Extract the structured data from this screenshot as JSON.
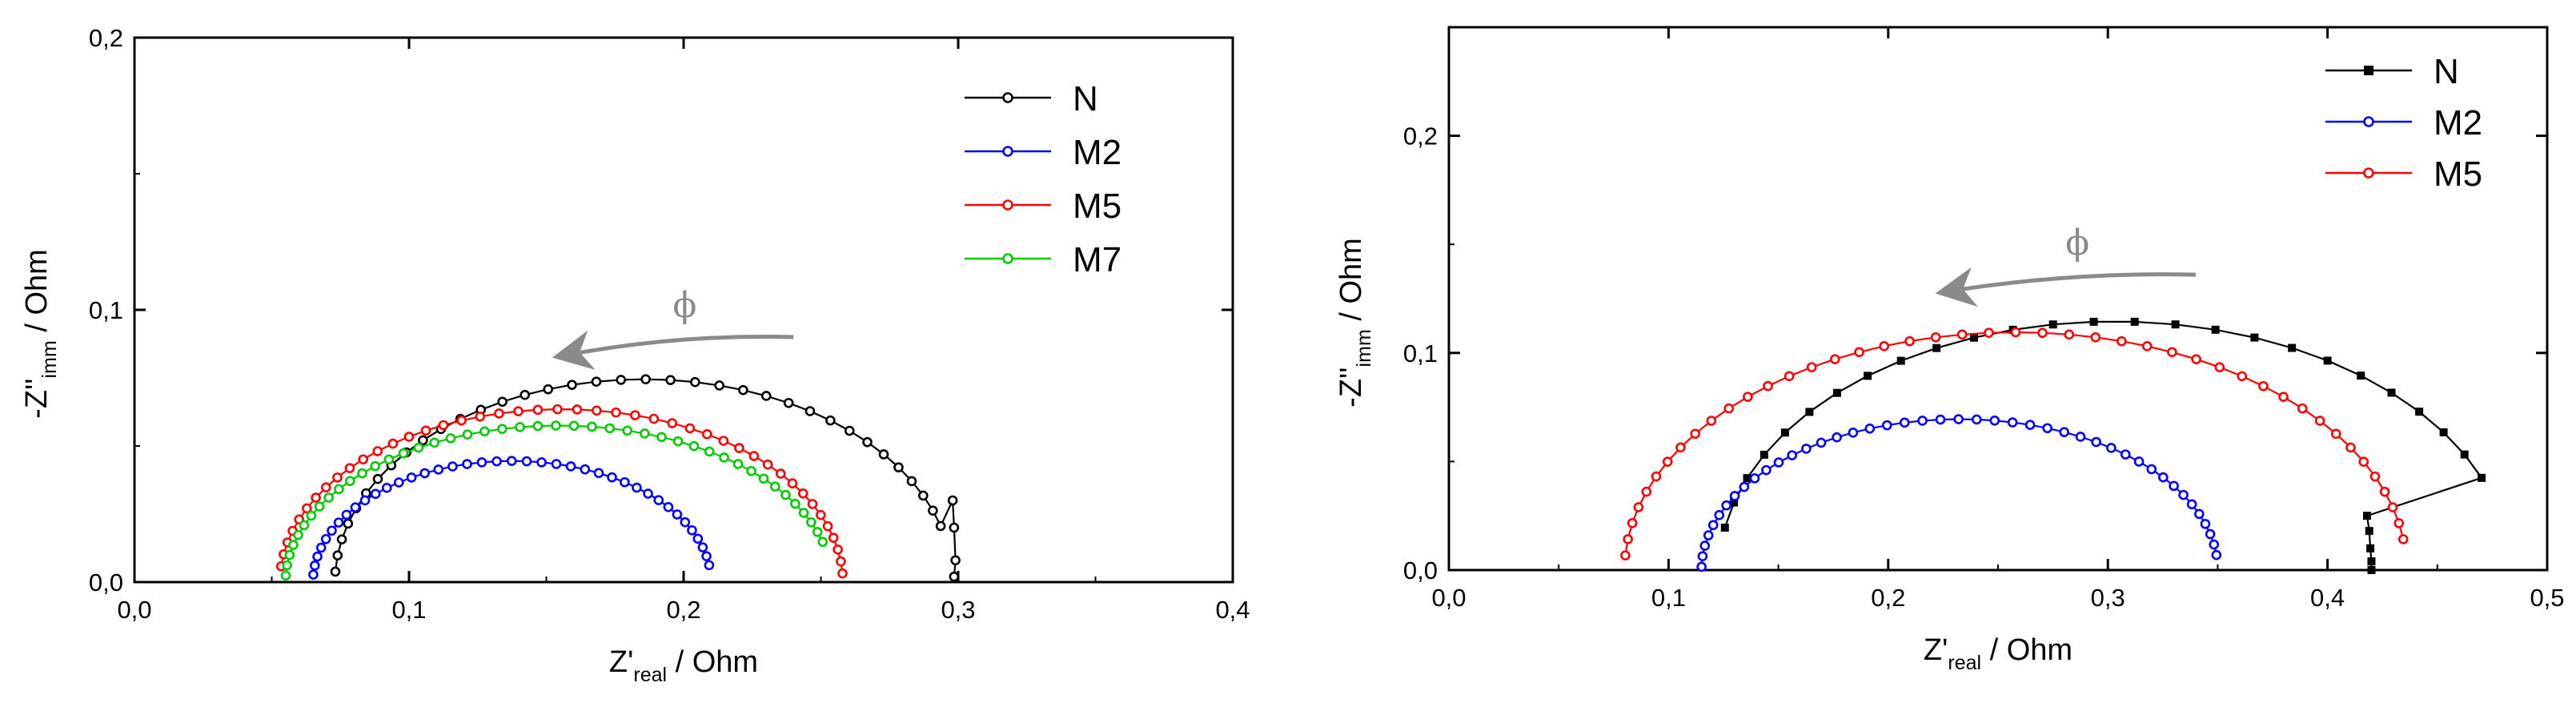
{
  "chart_data": [
    {
      "type": "line",
      "xlabel": {
        "main": "Z'",
        "sub": "real",
        "unit": " / Ohm"
      },
      "ylabel": {
        "main": "-Z''",
        "sub": "imm",
        "unit": " / Ohm"
      },
      "xlim": [
        0,
        0.4
      ],
      "ylim": [
        0,
        0.2
      ],
      "x_ticks": [
        0,
        0.1,
        0.2,
        0.3,
        0.4
      ],
      "x_tick_labels": [
        "0,0",
        "0,1",
        "0,2",
        "0,3",
        "0,4"
      ],
      "y_ticks": [
        0,
        0.1,
        0.2
      ],
      "y_tick_labels": [
        "0,0",
        "0,1",
        "0,2"
      ],
      "legend_position": "top-right",
      "arrow_label": "ϕ",
      "arrow": {
        "x_from": 0.24,
        "y_from": 0.09,
        "x_to": 0.155,
        "y_to": 0.083
      },
      "series": [
        {
          "name": "N",
          "color": "#000000",
          "marker": "circle",
          "center": [
            0.1855,
            0
          ],
          "rx": 0.1125,
          "ry": 0.0745,
          "theta_start": 0.28,
          "theta_end": 3.09,
          "n": 36,
          "tail": [
            [
              0.298,
              0.03
            ],
            [
              0.2985,
              0.02
            ],
            [
              0.299,
              0.008
            ],
            [
              0.2985,
              0.002
            ]
          ]
        },
        {
          "name": "M2",
          "color": "#0000ff",
          "marker": "circle",
          "center": [
            0.1375,
            0
          ],
          "rx": 0.0725,
          "ry": 0.0445,
          "theta_start": 0.14,
          "theta_end": 3.08,
          "n": 40,
          "tail": []
        },
        {
          "name": "M5",
          "color": "#ff0000",
          "marker": "circle",
          "center": [
            0.1555,
            0
          ],
          "rx": 0.1025,
          "ry": 0.0635,
          "theta_start": 0.05,
          "theta_end": 3.05,
          "n": 44,
          "tail": []
        },
        {
          "name": "M7",
          "color": "#00cc00",
          "marker": "circle",
          "center": [
            0.1545,
            0
          ],
          "rx": 0.0995,
          "ry": 0.0575,
          "theta_start": 0.26,
          "theta_end": 3.1,
          "n": 44,
          "tail": []
        }
      ]
    },
    {
      "type": "line",
      "xlabel": {
        "main": "Z'",
        "sub": "real",
        "unit": " / Ohm"
      },
      "ylabel": {
        "main": "-Z''",
        "sub": "imm",
        "unit": " / Ohm"
      },
      "xlim": [
        0,
        0.5
      ],
      "ylim": [
        0,
        0.25
      ],
      "x_ticks": [
        0,
        0.1,
        0.2,
        0.3,
        0.4,
        0.5
      ],
      "x_tick_labels": [
        "0,0",
        "0,1",
        "0,2",
        "0,3",
        "0,4",
        "0,5"
      ],
      "y_ticks": [
        0,
        0.1,
        0.2
      ],
      "y_tick_labels": [
        "0,0",
        "0,1",
        "0,2"
      ],
      "legend_position": "top-right",
      "arrow_label": "ϕ",
      "arrow": {
        "x_from": 0.34,
        "y_from": 0.136,
        "x_to": 0.225,
        "y_to": 0.128
      },
      "series": [
        {
          "name": "N",
          "color": "#000000",
          "marker": "square",
          "center": [
            0.303,
            0
          ],
          "rx": 0.18,
          "ry": 0.1145,
          "theta_start": 0.38,
          "theta_end": 2.97,
          "n": 26,
          "tail": [
            [
              0.418,
              0.025
            ],
            [
              0.419,
              0.018
            ],
            [
              0.4195,
              0.01
            ],
            [
              0.42,
              0.004
            ],
            [
              0.42,
              0.0
            ]
          ]
        },
        {
          "name": "M2",
          "color": "#0000ff",
          "marker": "circle",
          "center": [
            0.2325,
            0
          ],
          "rx": 0.1175,
          "ry": 0.0695,
          "theta_start": 0.1,
          "theta_end": 3.12,
          "n": 44,
          "tail": []
        },
        {
          "name": "M5",
          "color": "#ff0000",
          "marker": "circle",
          "center": [
            0.258,
            0
          ],
          "rx": 0.178,
          "ry": 0.1095,
          "theta_start": 0.13,
          "theta_end": 3.08,
          "n": 44,
          "tail": []
        }
      ]
    }
  ]
}
